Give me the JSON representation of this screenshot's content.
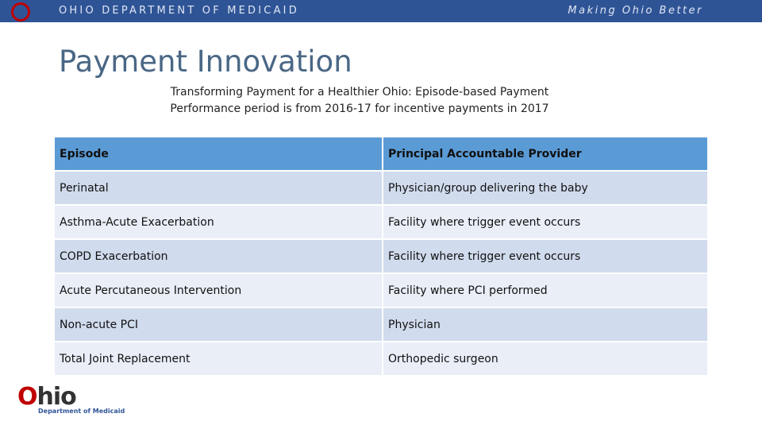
{
  "header": {
    "org": "OHIO DEPARTMENT OF MEDICAID",
    "tagline": "Making Ohio Better"
  },
  "title": "Payment Innovation",
  "subtitle": [
    "Transforming Payment for a Healthier Ohio: Episode-based Payment",
    "Performance period is from 2016-17 for incentive payments in 2017"
  ],
  "table": {
    "columns": [
      "Episode",
      "Principal Accountable Provider"
    ],
    "rows": [
      [
        "Perinatal",
        "Physician/group delivering the baby"
      ],
      [
        "Asthma-Acute Exacerbation",
        "Facility where trigger event occurs"
      ],
      [
        "COPD Exacerbation",
        "Facility where trigger event occurs"
      ],
      [
        "Acute Percutaneous Intervention",
        "Facility where PCI performed"
      ],
      [
        "Non-acute PCI",
        "Physician"
      ],
      [
        "Total Joint Replacement",
        "Orthopedic surgeon"
      ]
    ]
  },
  "logo": {
    "name": "Ohio",
    "subtitle": "Department of Medicaid"
  }
}
